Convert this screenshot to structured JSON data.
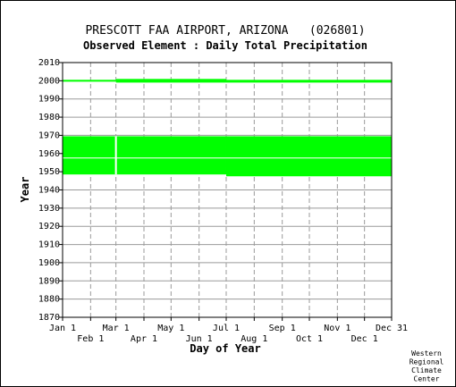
{
  "chart_data": {
    "type": "timeline",
    "title": "PRESCOTT FAA AIRPORT, ARIZONA   (026801)",
    "subtitle": "Observed Element : Daily Total Precipitation",
    "xlabel": "Day of Year",
    "ylabel": "Year",
    "xlim": [
      1,
      365
    ],
    "ylim": [
      1870,
      2010
    ],
    "x_ticks_top": [
      {
        "label": "Jan 1",
        "day": 1
      },
      {
        "label": "Mar 1",
        "day": 60
      },
      {
        "label": "May 1",
        "day": 121
      },
      {
        "label": "Jul 1",
        "day": 182
      },
      {
        "label": "Sep 1",
        "day": 244
      },
      {
        "label": "Nov 1",
        "day": 305
      },
      {
        "label": "Dec 31",
        "day": 365
      }
    ],
    "x_ticks_bottom": [
      {
        "label": "Feb 1",
        "day": 32
      },
      {
        "label": "Apr 1",
        "day": 91
      },
      {
        "label": "Jun 1",
        "day": 152
      },
      {
        "label": "Aug 1",
        "day": 213
      },
      {
        "label": "Oct 1",
        "day": 274
      },
      {
        "label": "Dec 1",
        "day": 335
      }
    ],
    "y_ticks": [
      "1870",
      "1880",
      "1890",
      "1900",
      "1910",
      "1920",
      "1930",
      "1940",
      "1950",
      "1960",
      "1970",
      "1980",
      "1990",
      "2000",
      "2010"
    ],
    "grid": true,
    "bar_color": "#00ff00",
    "segments": [
      {
        "x0": 1,
        "x1": 60,
        "y0": 1999.5,
        "y1": 2000.5
      },
      {
        "x0": 60,
        "x1": 182,
        "y0": 1999.0,
        "y1": 2001.0
      },
      {
        "x0": 182,
        "x1": 365,
        "y0": 1999.0,
        "y1": 2000.5
      },
      {
        "x0": 1,
        "x1": 60,
        "y0": 1948.5,
        "y1": 1969.5
      },
      {
        "x0": 60,
        "x1": 182,
        "y0": 1948.5,
        "y1": 1969.5
      },
      {
        "x0": 182,
        "x1": 365,
        "y0": 1947.5,
        "y1": 1969.5
      }
    ],
    "gaps": [
      {
        "x0": 1,
        "x1": 365,
        "y0": 1957.3,
        "y1": 1957.8
      },
      {
        "x0": 59,
        "x1": 61,
        "y0": 1948.5,
        "y1": 1969.5
      }
    ]
  },
  "credit": [
    "Western",
    "Regional",
    "Climate",
    "Center"
  ]
}
